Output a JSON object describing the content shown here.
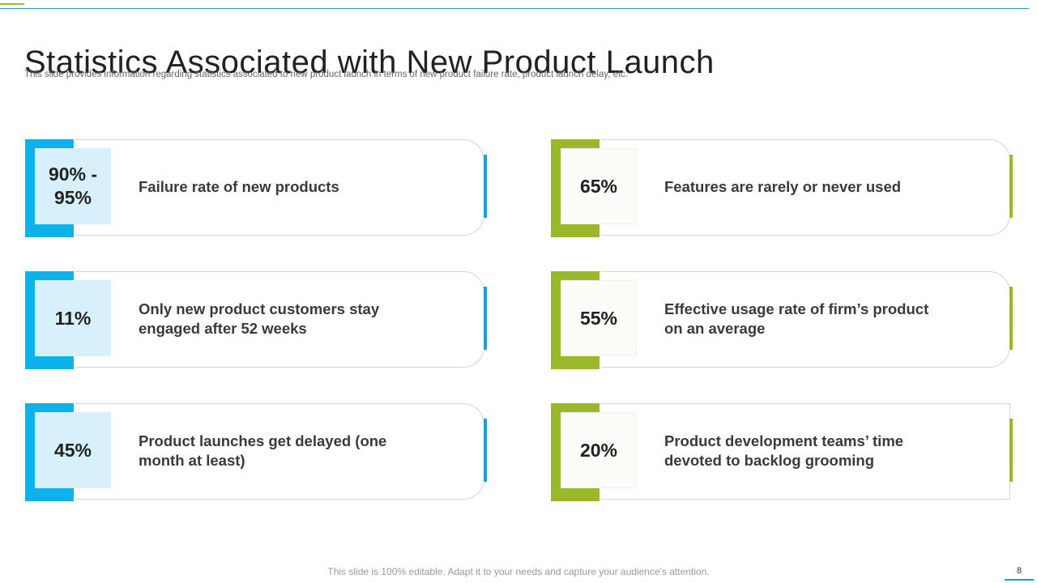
{
  "title": "Statistics Associated with New Product Launch",
  "subtitle": "This slide provides information regarding statistics associated to new product launch in terms of new product failure rate, product launch delay, etc.",
  "colors": {
    "blue_accent": "#0eb2ea",
    "blue_light": "#d6f1fb",
    "green_accent": "#9ab82a"
  },
  "stats": [
    {
      "value": "90% - 95%",
      "label": "Failure rate of new products"
    },
    {
      "value": "65%",
      "label": "Features are rarely or never used"
    },
    {
      "value": "11%",
      "label": "Only new product customers stay engaged after 52 weeks"
    },
    {
      "value": "55%",
      "label": "Effective usage rate of firm’s product on an average"
    },
    {
      "value": "45%",
      "label": "Product launches get delayed (one month at least)"
    },
    {
      "value": "20%",
      "label": "Product development teams’ time devoted to backlog grooming"
    }
  ],
  "footer": {
    "note": "This slide is 100% editable. Adapt it to your needs and capture your audience's attention.",
    "page_number": "8"
  }
}
